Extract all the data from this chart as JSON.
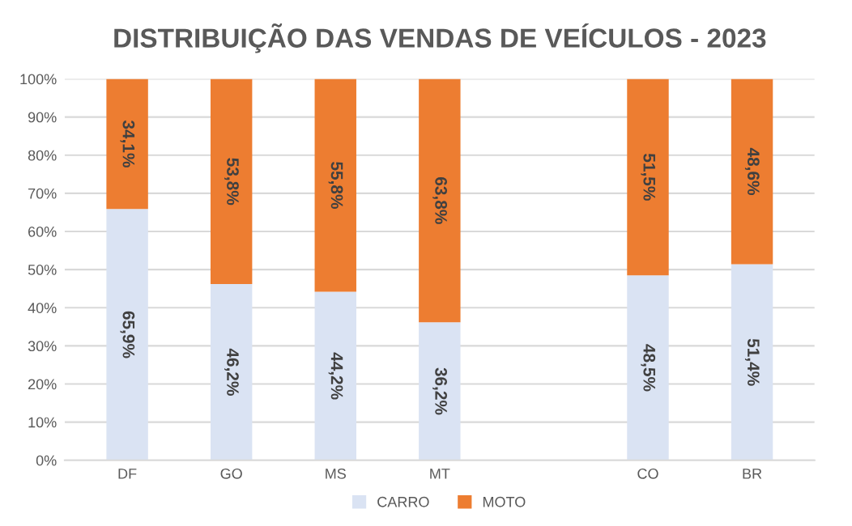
{
  "chart_data": {
    "type": "bar",
    "title": "DISTRIBUIÇÃO DAS VENDAS DE VEÍCULOS - 2023",
    "stacked": true,
    "categories": [
      "DF",
      "GO",
      "MS",
      "MT",
      null,
      "CO",
      "BR"
    ],
    "series": [
      {
        "name": "CARRO",
        "color": "#dae3f3",
        "values": [
          65.9,
          46.2,
          44.2,
          36.2,
          null,
          48.5,
          51.4
        ],
        "value_labels": [
          "65,9%",
          "46,2%",
          "44,2%",
          "36,2%",
          null,
          "48,5%",
          "51,4%"
        ]
      },
      {
        "name": "MOTO",
        "color": "#ed7d31",
        "values": [
          34.1,
          53.8,
          55.8,
          63.8,
          null,
          51.5,
          48.6
        ],
        "value_labels": [
          "34,1%",
          "53,8%",
          "55,8%",
          "63,8%",
          null,
          "51,5%",
          "48,6%"
        ]
      }
    ],
    "ylim": [
      0,
      100
    ],
    "yticks": [
      {
        "value": 0,
        "label": "0%"
      },
      {
        "value": 10,
        "label": "10%"
      },
      {
        "value": 20,
        "label": "20%"
      },
      {
        "value": 30,
        "label": "30%"
      },
      {
        "value": 40,
        "label": "40%"
      },
      {
        "value": 50,
        "label": "50%"
      },
      {
        "value": 60,
        "label": "60%"
      },
      {
        "value": 70,
        "label": "70%"
      },
      {
        "value": 80,
        "label": "80%"
      },
      {
        "value": 90,
        "label": "90%"
      },
      {
        "value": 100,
        "label": "100%"
      }
    ],
    "grid": "y",
    "legend": "bottom"
  }
}
